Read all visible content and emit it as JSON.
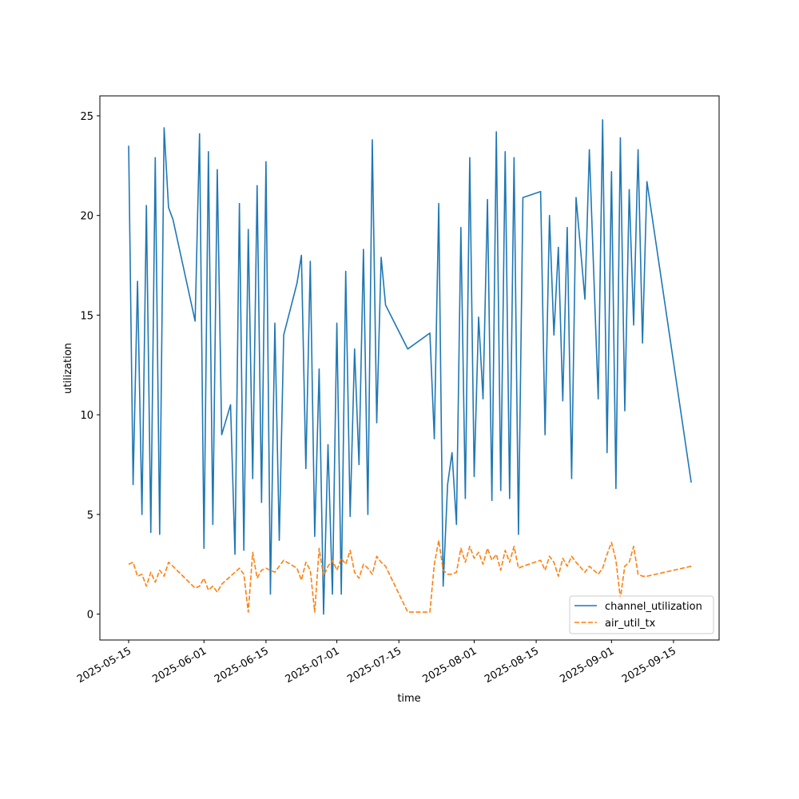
{
  "chart_data": {
    "type": "line",
    "xlabel": "time",
    "ylabel": "utilization",
    "x": [
      "2025-05-15",
      "2025-05-16",
      "2025-05-17",
      "2025-05-18",
      "2025-05-19",
      "2025-05-20",
      "2025-05-21",
      "2025-05-22",
      "2025-05-23",
      "2025-05-24",
      "2025-05-25",
      "2025-05-30",
      "2025-05-31",
      "2025-06-01",
      "2025-06-02",
      "2025-06-03",
      "2025-06-04",
      "2025-06-05",
      "2025-06-07",
      "2025-06-08",
      "2025-06-09",
      "2025-06-10",
      "2025-06-11",
      "2025-06-12",
      "2025-06-13",
      "2025-06-14",
      "2025-06-15",
      "2025-06-16",
      "2025-06-17",
      "2025-06-18",
      "2025-06-19",
      "2025-06-22",
      "2025-06-23",
      "2025-06-24",
      "2025-06-25",
      "2025-06-26",
      "2025-06-27",
      "2025-06-28",
      "2025-06-29",
      "2025-06-30",
      "2025-07-01",
      "2025-07-02",
      "2025-07-03",
      "2025-07-04",
      "2025-07-05",
      "2025-07-06",
      "2025-07-07",
      "2025-07-08",
      "2025-07-09",
      "2025-07-10",
      "2025-07-11",
      "2025-07-12",
      "2025-07-17",
      "2025-07-22",
      "2025-07-23",
      "2025-07-24",
      "2025-07-25",
      "2025-07-26",
      "2025-07-27",
      "2025-07-28",
      "2025-07-29",
      "2025-07-30",
      "2025-07-31",
      "2025-08-01",
      "2025-08-02",
      "2025-08-03",
      "2025-08-04",
      "2025-08-05",
      "2025-08-06",
      "2025-08-07",
      "2025-08-08",
      "2025-08-09",
      "2025-08-10",
      "2025-08-11",
      "2025-08-12",
      "2025-08-16",
      "2025-08-17",
      "2025-08-18",
      "2025-08-19",
      "2025-08-20",
      "2025-08-21",
      "2025-08-22",
      "2025-08-23",
      "2025-08-24",
      "2025-08-26",
      "2025-08-27",
      "2025-08-29",
      "2025-08-30",
      "2025-08-31",
      "2025-09-01",
      "2025-09-02",
      "2025-09-03",
      "2025-09-04",
      "2025-09-05",
      "2025-09-06",
      "2025-09-07",
      "2025-09-08",
      "2025-09-09",
      "2025-09-19"
    ],
    "series": [
      {
        "name": "channel_utilization",
        "color": "#1f77b4",
        "linestyle": "solid",
        "values": [
          23.5,
          6.5,
          16.7,
          5.0,
          20.5,
          4.1,
          22.9,
          4.0,
          24.4,
          20.4,
          19.8,
          14.7,
          24.1,
          3.3,
          23.2,
          4.5,
          22.3,
          9.0,
          10.5,
          3.0,
          20.6,
          3.2,
          19.3,
          6.8,
          21.5,
          5.6,
          22.7,
          1.0,
          14.6,
          3.7,
          14.0,
          16.6,
          18.0,
          7.3,
          17.7,
          3.9,
          12.3,
          0.0,
          8.5,
          1.0,
          14.6,
          1.0,
          17.2,
          4.9,
          13.3,
          7.5,
          18.3,
          5.0,
          23.8,
          9.6,
          17.9,
          15.5,
          13.3,
          14.1,
          8.8,
          20.6,
          1.4,
          6.5,
          8.1,
          4.5,
          19.4,
          5.8,
          22.9,
          6.9,
          14.9,
          10.8,
          20.8,
          5.7,
          24.2,
          6.2,
          23.2,
          5.8,
          22.9,
          4.0,
          20.9,
          21.2,
          9.0,
          20.0,
          14.0,
          18.4,
          10.7,
          19.4,
          6.8,
          20.9,
          15.8,
          23.3,
          10.8,
          24.8,
          8.1,
          22.2,
          6.3,
          23.9,
          10.2,
          21.3,
          14.5,
          23.3,
          13.6,
          21.7,
          6.6
        ]
      },
      {
        "name": "air_util_tx",
        "color": "#ff7f0e",
        "linestyle": "dashed",
        "values": [
          2.5,
          2.6,
          1.9,
          2.0,
          1.4,
          2.1,
          1.6,
          2.2,
          1.9,
          2.6,
          2.4,
          1.3,
          1.4,
          1.8,
          1.2,
          1.4,
          1.1,
          1.5,
          1.9,
          2.1,
          2.3,
          2.0,
          0.1,
          3.1,
          1.8,
          2.2,
          2.3,
          2.2,
          2.1,
          2.4,
          2.7,
          2.3,
          1.7,
          2.6,
          2.2,
          0.1,
          3.3,
          1.9,
          2.4,
          2.7,
          2.2,
          2.8,
          2.5,
          3.2,
          2.1,
          1.8,
          2.5,
          2.3,
          2.0,
          2.9,
          2.6,
          2.4,
          0.1,
          0.1,
          2.5,
          3.7,
          2.2,
          2.0,
          2.0,
          2.1,
          3.3,
          2.6,
          3.4,
          2.8,
          3.1,
          2.5,
          3.3,
          2.7,
          3.0,
          2.2,
          3.2,
          2.6,
          3.4,
          2.3,
          2.4,
          2.7,
          2.2,
          2.9,
          2.6,
          1.9,
          2.8,
          2.4,
          2.9,
          2.6,
          2.1,
          2.4,
          2.0,
          2.3,
          3.0,
          3.6,
          2.7,
          0.8,
          2.4,
          2.6,
          3.4,
          2.0,
          1.9,
          1.9,
          2.4
        ]
      }
    ],
    "xlim": [
      "2025-05-08T12:00",
      "2025-09-25T07:00"
    ],
    "xticks": [
      "2025-05-15",
      "2025-06-01",
      "2025-06-15",
      "2025-07-01",
      "2025-07-15",
      "2025-08-01",
      "2025-08-15",
      "2025-09-01",
      "2025-09-15"
    ],
    "ylim": [
      -1.3,
      26
    ],
    "yticks": [
      0,
      5,
      10,
      15,
      20,
      25
    ],
    "grid": false,
    "legend": "lower right"
  }
}
